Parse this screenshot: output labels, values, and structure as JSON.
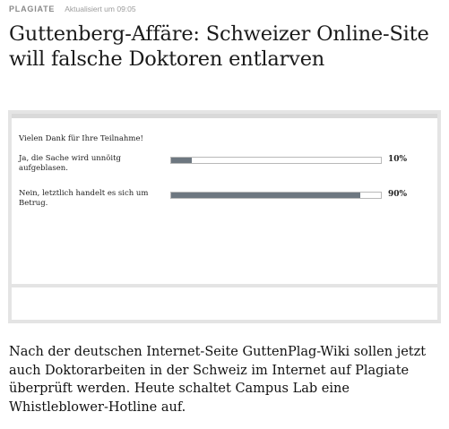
{
  "header": {
    "kicker": "PLAGIATE",
    "updated": "Aktualisiert um 09:05"
  },
  "article": {
    "headline": "Guttenberg-Affäre: Schweizer Online-Site will falsche Doktoren entlarven",
    "lead": "Nach der deutschen Internet-Seite GuttenPlag-Wiki sollen jetzt auch Doktorarbeiten in der Schweiz im Internet auf Plagiate überprüft werden. Heute schaltet Campus Lab eine Whistleblower-Hotline auf."
  },
  "poll": {
    "thanks": "Vielen Dank für Ihre Teilnahme!",
    "options": [
      {
        "label": "Ja, die Sache wird unnöitg aufgeblasen.",
        "percent_text": "10%",
        "fraction": 0.1
      },
      {
        "label": "Nein, letztlich handelt es sich um Betrug.",
        "percent_text": "90%",
        "fraction": 0.9
      }
    ],
    "colors": {
      "bar_fill": "#6d7780",
      "frame": "#e4e4e4"
    }
  }
}
